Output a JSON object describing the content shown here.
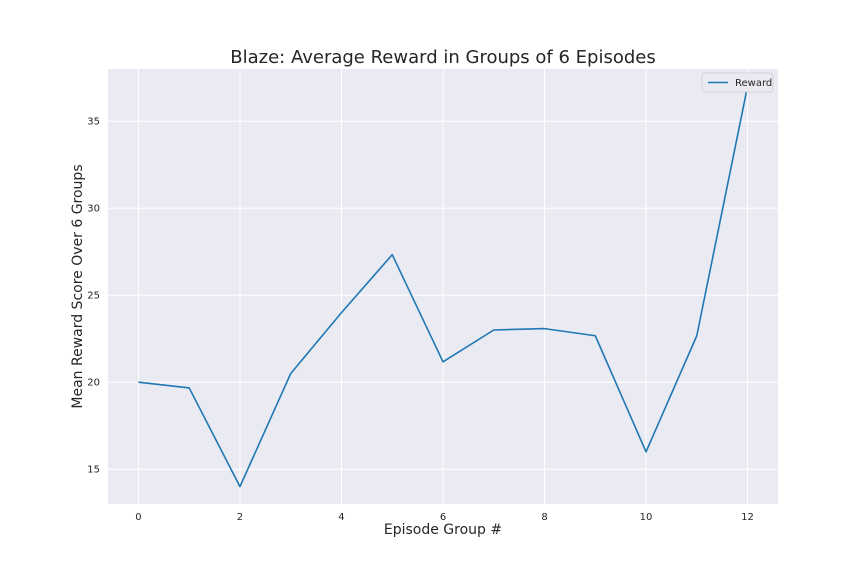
{
  "chart_data": {
    "type": "line",
    "title": "Blaze: Average Reward in Groups of 6 Episodes",
    "xlabel": "Episode Group #",
    "ylabel": "Mean Reward Score Over 6 Groups",
    "x": [
      0,
      1,
      2,
      3,
      4,
      5,
      6,
      7,
      8,
      9,
      10,
      11,
      12
    ],
    "series": [
      {
        "name": "Reward",
        "color": "#1f77b4",
        "values": [
          20.0,
          19.67,
          14.0,
          20.5,
          24.0,
          27.33,
          21.17,
          23.0,
          23.08,
          22.67,
          16.0,
          22.67,
          37.0
        ]
      }
    ],
    "xlim": [
      -0.6,
      12.6
    ],
    "ylim": [
      13.0,
      38.0
    ],
    "xticks": [
      0,
      2,
      4,
      6,
      8,
      10,
      12
    ],
    "yticks": [
      15,
      20,
      25,
      30,
      35
    ],
    "grid": true,
    "legend": "top-right",
    "background_color": "#eaeaf2",
    "grid_color": "#ffffff"
  }
}
